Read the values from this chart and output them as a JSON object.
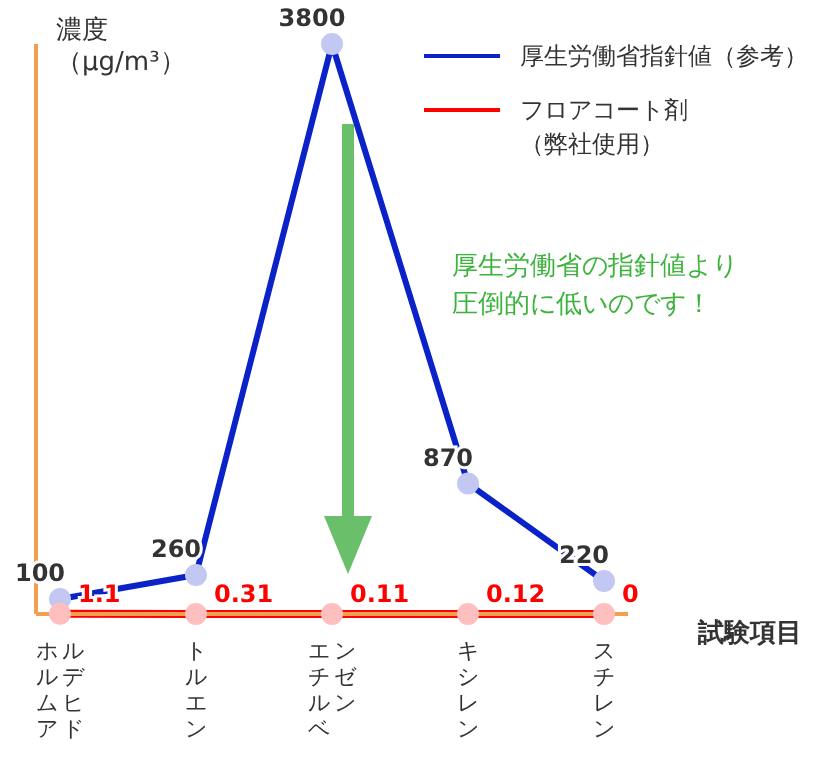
{
  "chart_data": {
    "type": "line",
    "ylabel": "濃度（μg/m³）",
    "xlabel": "試験項目",
    "categories": [
      "ホルムアルデヒド",
      "トルエン",
      "エチルベンゼン",
      "キシレン",
      "スチレン"
    ],
    "series": [
      {
        "name": "厚生労働省指針値（参考）",
        "color": "#0a22c8",
        "values": [
          100,
          260,
          3800,
          870,
          220
        ]
      },
      {
        "name": "フロアコート剤（弊社使用）",
        "color": "#ff0000",
        "values": [
          1.1,
          0.31,
          0.11,
          0.12,
          0
        ]
      }
    ],
    "data_labels": true,
    "legend": "top right",
    "marker": "circle",
    "grid": false,
    "annotations": [
      "厚生労働省の指針値より圧倒的に低いのです！"
    ]
  }
}
